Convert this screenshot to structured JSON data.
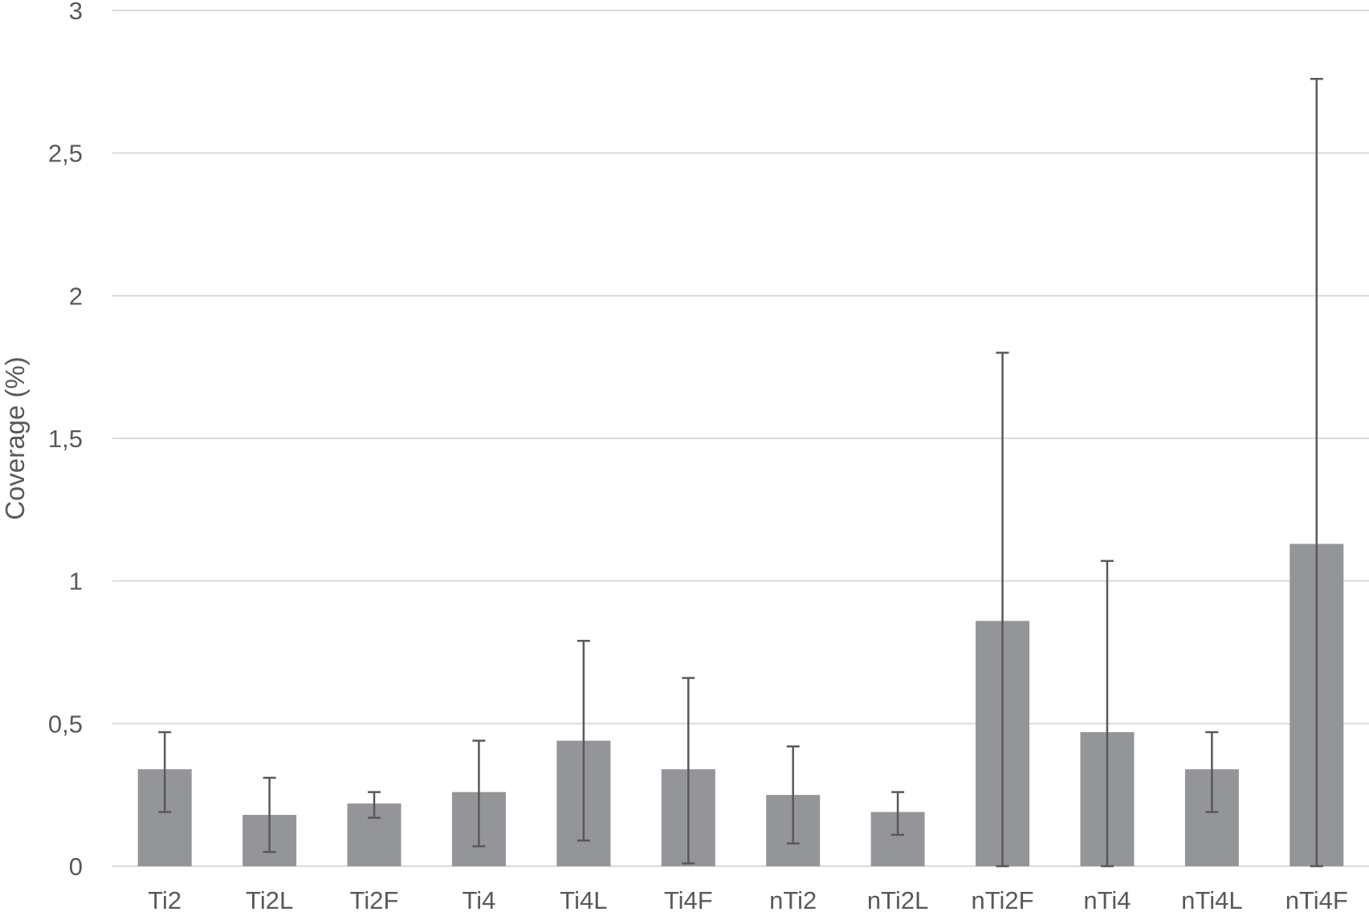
{
  "chart_data": {
    "type": "bar",
    "title": "",
    "xlabel": "",
    "ylabel": "Coverage (%)",
    "ylim": [
      0,
      3
    ],
    "yticks": [
      0,
      0.5,
      1,
      1.5,
      2,
      2.5,
      3
    ],
    "ytick_labels": [
      "0",
      "0,5",
      "1",
      "1,5",
      "2",
      "2,5",
      "3"
    ],
    "grid": true,
    "legend": "none",
    "categories": [
      "Ti2",
      "Ti2L",
      "Ti2F",
      "Ti4",
      "Ti4L",
      "Ti4F",
      "nTi2",
      "nTi2L",
      "nTi2F",
      "nTi4",
      "nTi4L",
      "nTi4F"
    ],
    "values": [
      0.34,
      0.18,
      0.22,
      0.26,
      0.44,
      0.34,
      0.25,
      0.19,
      0.86,
      0.47,
      0.34,
      1.13
    ],
    "error_low": [
      0.19,
      0.05,
      0.17,
      0.07,
      0.09,
      0.01,
      0.08,
      0.11,
      0.0,
      0.0,
      0.19,
      0.0
    ],
    "error_high": [
      0.47,
      0.31,
      0.26,
      0.44,
      0.79,
      0.66,
      0.42,
      0.26,
      1.8,
      1.07,
      0.47,
      2.76
    ],
    "colors": {
      "bar": "#939598",
      "error_bar": "#595959",
      "grid": "#d9d9d9",
      "text": "#595959"
    }
  }
}
